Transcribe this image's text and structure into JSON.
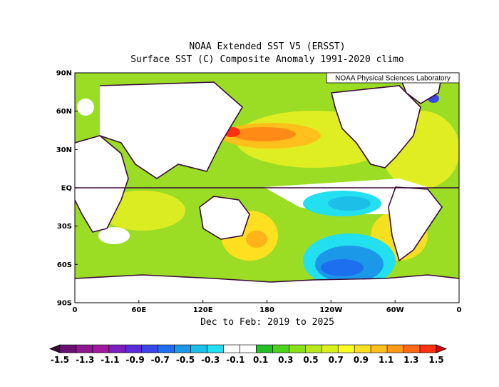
{
  "title_line1": "NOAA Extended SST V5 (ERSST)",
  "title_line2": "Surface SST (C) Composite Anomaly 1991-2020 climo",
  "credit": "NOAA Physical Sciences Laboratory",
  "period_label": "Dec to Feb: 2019 to 2025",
  "lat_ticks": [
    "90N",
    "60N",
    "30N",
    "EQ",
    "30S",
    "60S",
    "90S"
  ],
  "lon_ticks": [
    "0",
    "60E",
    "120E",
    "180",
    "120W",
    "60W",
    "0"
  ],
  "colorbar": {
    "labels": [
      "-1.5",
      "-1.3",
      "-1.1",
      "-0.9",
      "-0.7",
      "-0.5",
      "-0.3",
      "-0.1",
      "0.1",
      "0.3",
      "0.5",
      "0.7",
      "0.9",
      "1.1",
      "1.3",
      "1.5"
    ],
    "colors": [
      "#3a0a3a",
      "#6a1070",
      "#8e168e",
      "#a01aa0",
      "#7b1fbf",
      "#5c2ad8",
      "#3b46e8",
      "#1e6ff0",
      "#1b98e8",
      "#1cbfe8",
      "#22e0f0",
      "#ffffff",
      "#ffffff",
      "#22c022",
      "#4cd21c",
      "#8ae018",
      "#b8e81c",
      "#dcef1e",
      "#ffff22",
      "#ffe020",
      "#ffc01c",
      "#ff9a18",
      "#ff6a14",
      "#ff3010",
      "#e00000"
    ]
  }
}
